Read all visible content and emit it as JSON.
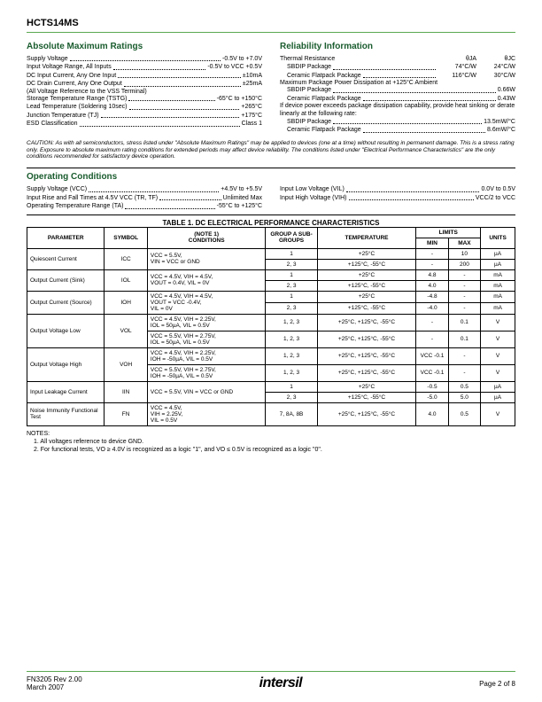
{
  "header": {
    "part": "HCTS14MS"
  },
  "amr": {
    "title": "Absolute Maximum Ratings",
    "items": [
      {
        "label": "Supply Voltage",
        "val": "-0.5V to +7.0V"
      },
      {
        "label": "Input Voltage Range, All Inputs",
        "val": "-0.5V to VCC +0.5V"
      },
      {
        "label": "DC Input Current, Any One Input",
        "val": "±10mA"
      },
      {
        "label": "DC Drain Current, Any One Output",
        "val": "±25mA"
      }
    ],
    "note": "(All Voltage Reference to the VSS Terminal)",
    "items2": [
      {
        "label": "Storage Temperature Range (TSTG)",
        "val": "-65°C to +150°C"
      },
      {
        "label": "Lead Temperature (Soldering 10sec)",
        "val": "+265°C"
      },
      {
        "label": "Junction Temperature (TJ)",
        "val": "+175°C"
      },
      {
        "label": "ESD Classification",
        "val": "Class 1"
      }
    ]
  },
  "rel": {
    "title": "Reliability Information",
    "thermal": "Thermal Resistance",
    "theta_ja": "θJA",
    "theta_jc": "θJC",
    "rows": [
      {
        "label": "SBDIP Package",
        "v1": "74°C/W",
        "v2": "24°C/W"
      },
      {
        "label": "Ceramic Flatpack Package",
        "v1": "116°C/W",
        "v2": "30°C/W"
      }
    ],
    "maxpow": "Maximum Package Power Dissipation at +125°C Ambient",
    "rows2": [
      {
        "label": "SBDIP Package",
        "val": "0.66W"
      },
      {
        "label": "Ceramic Flatpack Package",
        "val": "0.43W"
      }
    ],
    "note": "If device power exceeds package dissipation capability, provide heat sinking or derate linearly at the following rate:",
    "rows3": [
      {
        "label": "SBDIP Package",
        "val": "13.5mW/°C"
      },
      {
        "label": "Ceramic Flatpack Package",
        "val": "8.6mW/°C"
      }
    ]
  },
  "caution": "CAUTION: As with all semiconductors, stress listed under \"Absolute Maximum Ratings\" may be applied to devices (one at a time) without resulting in permanent damage. This is a stress rating only. Exposure to absolute maximum rating conditions for extended periods may affect device reliability. The conditions listed under \"Electrical Performance Characteristics\" are the only conditions recommended for satisfactory device operation.",
  "op": {
    "title": "Operating Conditions",
    "left": [
      {
        "label": "Supply Voltage (VCC)",
        "val": "+4.5V to +5.5V"
      },
      {
        "label": "Input Rise and Fall Times at 4.5V VCC (TR, TF)",
        "val": "Unlimited Max"
      },
      {
        "label": "Operating Temperature Range (TA)",
        "val": "-55°C to +125°C"
      }
    ],
    "right": [
      {
        "label": "Input Low Voltage (VIL)",
        "val": "0.0V to 0.5V"
      },
      {
        "label": "Input High Voltage (VIH)",
        "val": "VCC/2 to VCC"
      }
    ]
  },
  "table": {
    "caption": "TABLE 1. DC ELECTRICAL PERFORMANCE CHARACTERISTICS",
    "headers": {
      "parameter": "PARAMETER",
      "symbol": "SYMBOL",
      "conditions": "(NOTE 1)\nCONDITIONS",
      "group": "GROUP A SUB-GROUPS",
      "temp": "TEMPERATURE",
      "limits": "LIMITS",
      "min": "MIN",
      "max": "MAX",
      "units": "UNITS"
    },
    "rows": [
      {
        "param": "Quiescent Current",
        "sym": "ICC",
        "cond": "VCC = 5.5V,\nVIN = VCC or GND",
        "sub": [
          {
            "g": "1",
            "t": "+25°C",
            "min": "-",
            "max": "10",
            "u": "µA"
          },
          {
            "g": "2, 3",
            "t": "+125°C, -55°C",
            "min": "-",
            "max": "200",
            "u": "µA"
          }
        ]
      },
      {
        "param": "Output Current (Sink)",
        "sym": "IOL",
        "cond": "VCC = 4.5V, VIH = 4.5V,\nVOUT = 0.4V, VIL = 0V",
        "sub": [
          {
            "g": "1",
            "t": "+25°C",
            "min": "4.8",
            "max": "-",
            "u": "mA"
          },
          {
            "g": "2, 3",
            "t": "+125°C, -55°C",
            "min": "4.0",
            "max": "-",
            "u": "mA"
          }
        ]
      },
      {
        "param": "Output Current (Source)",
        "sym": "IOH",
        "cond": "VCC = 4.5V, VIH = 4.5V,\nVOUT = VCC -0.4V,\nVIL = 0V",
        "sub": [
          {
            "g": "1",
            "t": "+25°C",
            "min": "-4.8",
            "max": "-",
            "u": "mA"
          },
          {
            "g": "2, 3",
            "t": "+125°C, -55°C",
            "min": "-4.0",
            "max": "-",
            "u": "mA"
          }
        ]
      },
      {
        "param": "Output Voltage Low",
        "sym": "VOL",
        "condrows": [
          {
            "c": "VCC = 4.5V, VIH = 2.25V,\nIOL = 50µA, VIL = 0.5V",
            "g": "1, 2, 3",
            "t": "+25°C, +125°C, -55°C",
            "min": "-",
            "max": "0.1",
            "u": "V"
          },
          {
            "c": "VCC = 5.5V, VIH = 2.75V,\nIOL = 50µA, VIL = 0.5V",
            "g": "1, 2, 3",
            "t": "+25°C, +125°C, -55°C",
            "min": "-",
            "max": "0.1",
            "u": "V"
          }
        ]
      },
      {
        "param": "Output Voltage High",
        "sym": "VOH",
        "condrows": [
          {
            "c": "VCC = 4.5V, VIH = 2.25V,\nIOH = -50µA, VIL = 0.5V",
            "g": "1, 2, 3",
            "t": "+25°C, +125°C, -55°C",
            "min": "VCC -0.1",
            "max": "-",
            "u": "V"
          },
          {
            "c": "VCC = 5.5V, VIH = 2.75V,\nIOH = -50µA, VIL = 0.5V",
            "g": "1, 2, 3",
            "t": "+25°C, +125°C, -55°C",
            "min": "VCC -0.1",
            "max": "-",
            "u": "V"
          }
        ]
      },
      {
        "param": "Input Leakage Current",
        "sym": "IIN",
        "cond": "VCC = 5.5V, VIN = VCC or GND",
        "sub": [
          {
            "g": "1",
            "t": "+25°C",
            "min": "-0.5",
            "max": "0.5",
            "u": "µA"
          },
          {
            "g": "2, 3",
            "t": "+125°C, -55°C",
            "min": "-5.0",
            "max": "5.0",
            "u": "µA"
          }
        ]
      },
      {
        "param": "Noise Immunity Functional Test",
        "sym": "FN",
        "cond": "VCC = 4.5V,\nVIH = 2.25V,\nVIL = 0.5V",
        "sub": [
          {
            "g": "7, 8A, 8B",
            "t": "+25°C, +125°C, -55°C",
            "min": "4.0",
            "max": "0.5",
            "u": "V"
          }
        ]
      }
    ]
  },
  "notes": {
    "title": "NOTES:",
    "items": [
      "1. All voltages reference to device GND.",
      "2. For functional tests, VO ≥ 4.0V is recognized as a logic \"1\", and VO ≤ 0.5V is recognized as a logic \"0\"."
    ]
  },
  "footer": {
    "left1": "FN3205 Rev 2.00",
    "left2": "March 2007",
    "logo": "intersil",
    "page": "Page 2 of 8"
  }
}
